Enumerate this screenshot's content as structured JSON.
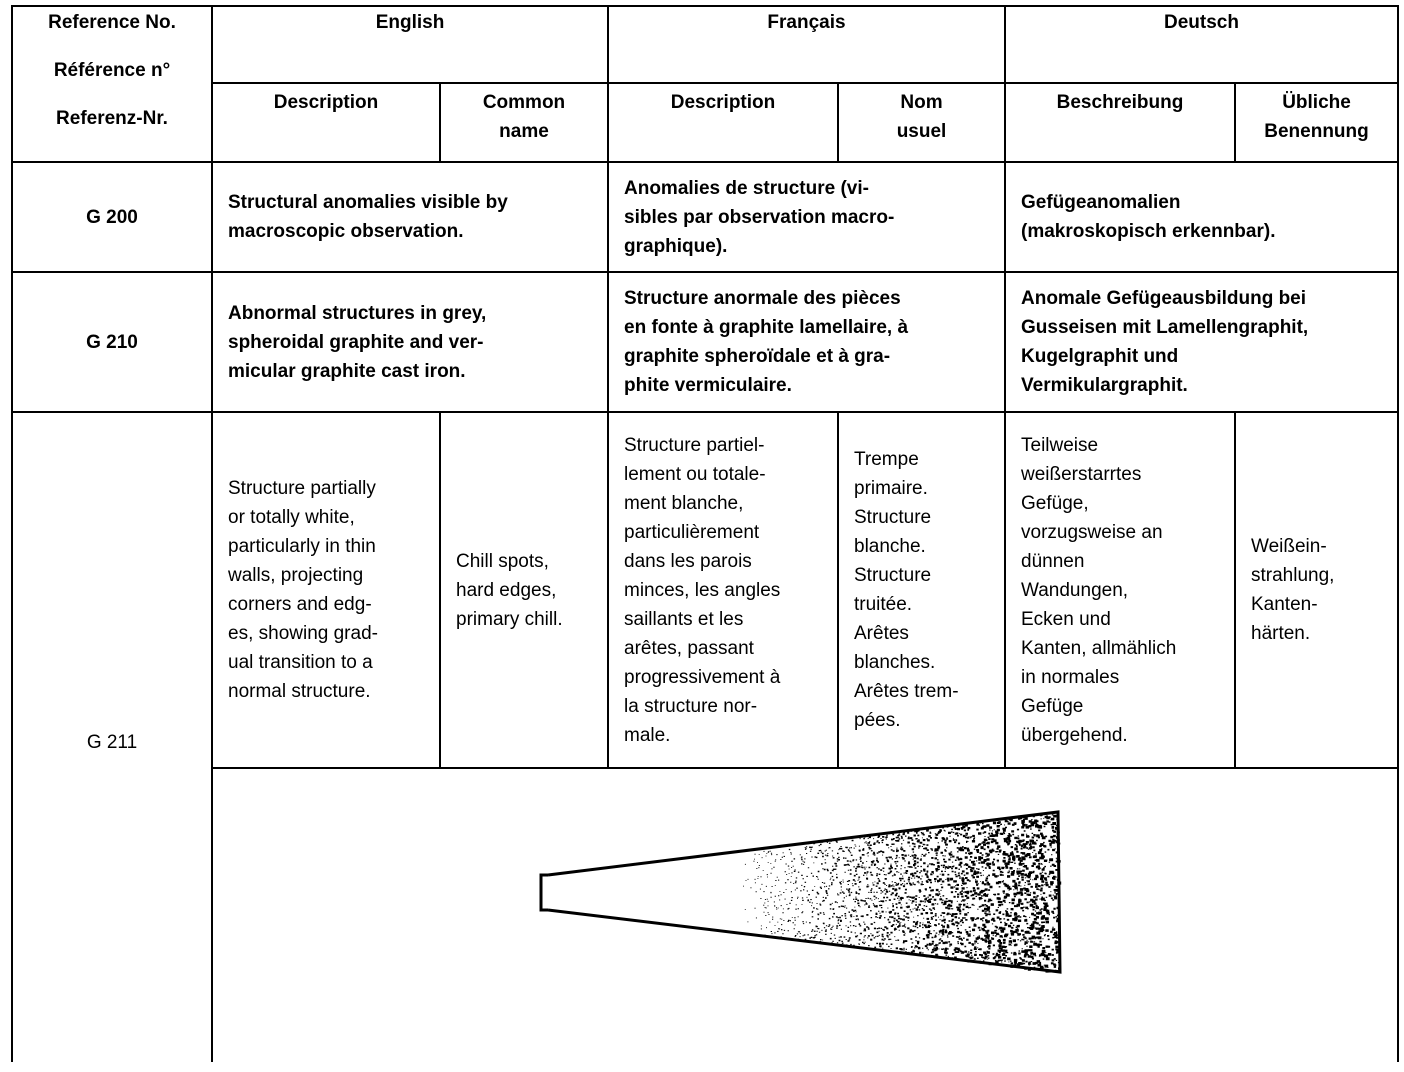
{
  "header": {
    "reference": [
      "Reference No.",
      "Référence n°",
      "Referenz-Nr."
    ],
    "languages": [
      {
        "name": "English",
        "columns": [
          "Description",
          "Common\nname"
        ]
      },
      {
        "name": "Français",
        "columns": [
          "Description",
          "Nom\nusuel"
        ]
      },
      {
        "name": "Deutsch",
        "columns": [
          "Beschreibung",
          "Übliche\nBenennung"
        ]
      }
    ]
  },
  "rows": [
    {
      "ref": "G 200",
      "cells": [
        "Structural anomalies visible by\nmacroscopic observation.",
        "Anomalies de structure (vi-\nsibles par observation macro-\ngraphique).",
        "Gefügeanomalien\n(makroskopisch erkennbar)."
      ]
    },
    {
      "ref": "G 210",
      "cells": [
        "Abnormal structures in grey,\nspheroidal graphite and ver-\nmicular graphite cast iron.",
        "Structure anormale des pièces\nen fonte à graphite lamellaire, à\ngraphite spheroïdale et à gra-\nphite vermiculaire.",
        "Anomale Gefügeausbildung bei\nGusseisen mit Lamellengraphit,\nKugelgraphit und\nVermikulargraphit."
      ]
    },
    {
      "ref": "G 211",
      "cells": [
        "Structure partially\nor totally white,\nparticularly in thin\nwalls, projecting\ncorners and edg-\nes, showing grad-\nual transition to a\nnormal structure.",
        "Chill spots,\nhard edges,\nprimary chill.",
        "Structure partiel-\nlement ou totale-\nment blanche,\nparticulièrement\ndans les parois\nminces, les angles\nsaillants et les\narêtes, passant\nprogressivement à\nla structure nor-\nmale.",
        "Trempe\nprimaire.\nStructure\nblanche.\nStructure\ntruitée.\nArêtes\nblanches.\nArêtes trem-\npées.",
        "Teilweise\nweißerstarrtes\nGefüge,\nvorzugsweise an\ndünnen\nWandungen,\nEcken und\nKanten, allmählich\nin normales\nGefüge\nübergehend.",
        "Weißein-\nstrahlung,\nKanten-\nhärten."
      ]
    }
  ]
}
